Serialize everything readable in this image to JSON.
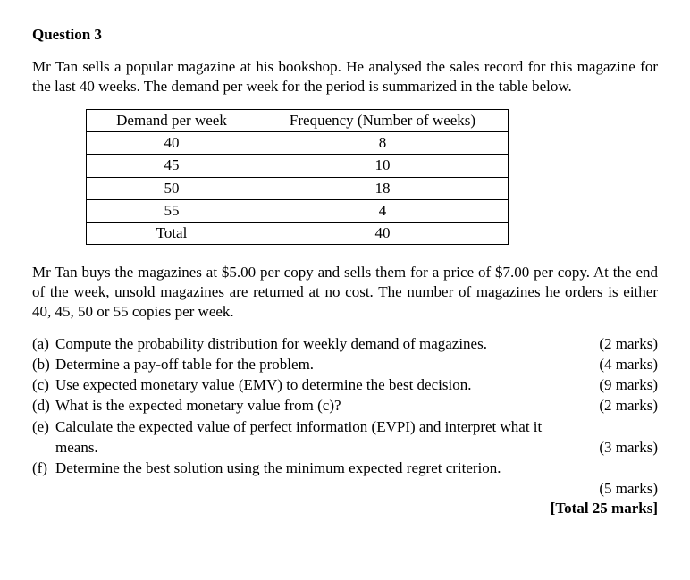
{
  "question": {
    "title": "Question 3",
    "intro": "Mr Tan sells a popular magazine at his bookshop. He analysed the sales record for this magazine for the last 40 weeks. The demand per week for the period is summarized in the table below.",
    "afterTable": "Mr Tan buys the magazines at $5.00 per copy and sells them for a price of $7.00 per copy. At the end of the week, unsold magazines are returned at no cost. The number of magazines he orders is either 40, 45, 50 or 55 copies per week."
  },
  "table": {
    "headers": {
      "demand": "Demand per week",
      "freq": "Frequency (Number of weeks)"
    },
    "rows": [
      {
        "demand": "40",
        "freq": "8"
      },
      {
        "demand": "45",
        "freq": "10"
      },
      {
        "demand": "50",
        "freq": "18"
      },
      {
        "demand": "55",
        "freq": "4"
      }
    ],
    "totalLabel": "Total",
    "totalValue": "40",
    "borderColor": "#000000"
  },
  "parts": {
    "a": {
      "label": "(a)",
      "text": "Compute the probability distribution for weekly demand of magazines.",
      "marks": "(2 marks)"
    },
    "b": {
      "label": "(b)",
      "text": "Determine a pay-off table for the problem.",
      "marks": "(4 marks)"
    },
    "c": {
      "label": "(c)",
      "text": "Use expected monetary value (EMV) to determine the best decision.",
      "marks": "(9 marks)"
    },
    "d": {
      "label": "(d)",
      "text": "What is the expected monetary value from (c)?",
      "marks": "(2 marks)"
    },
    "e": {
      "label": "(e)",
      "text": "Calculate the expected value of perfect information (EVPI) and interpret what it",
      "cont": "means.",
      "marks": "(3 marks)"
    },
    "f": {
      "label": "(f)",
      "text": "Determine the best solution using the minimum expected regret criterion.",
      "marksBelow": "(5 marks)"
    }
  },
  "totalMarks": "[Total 25 marks]"
}
